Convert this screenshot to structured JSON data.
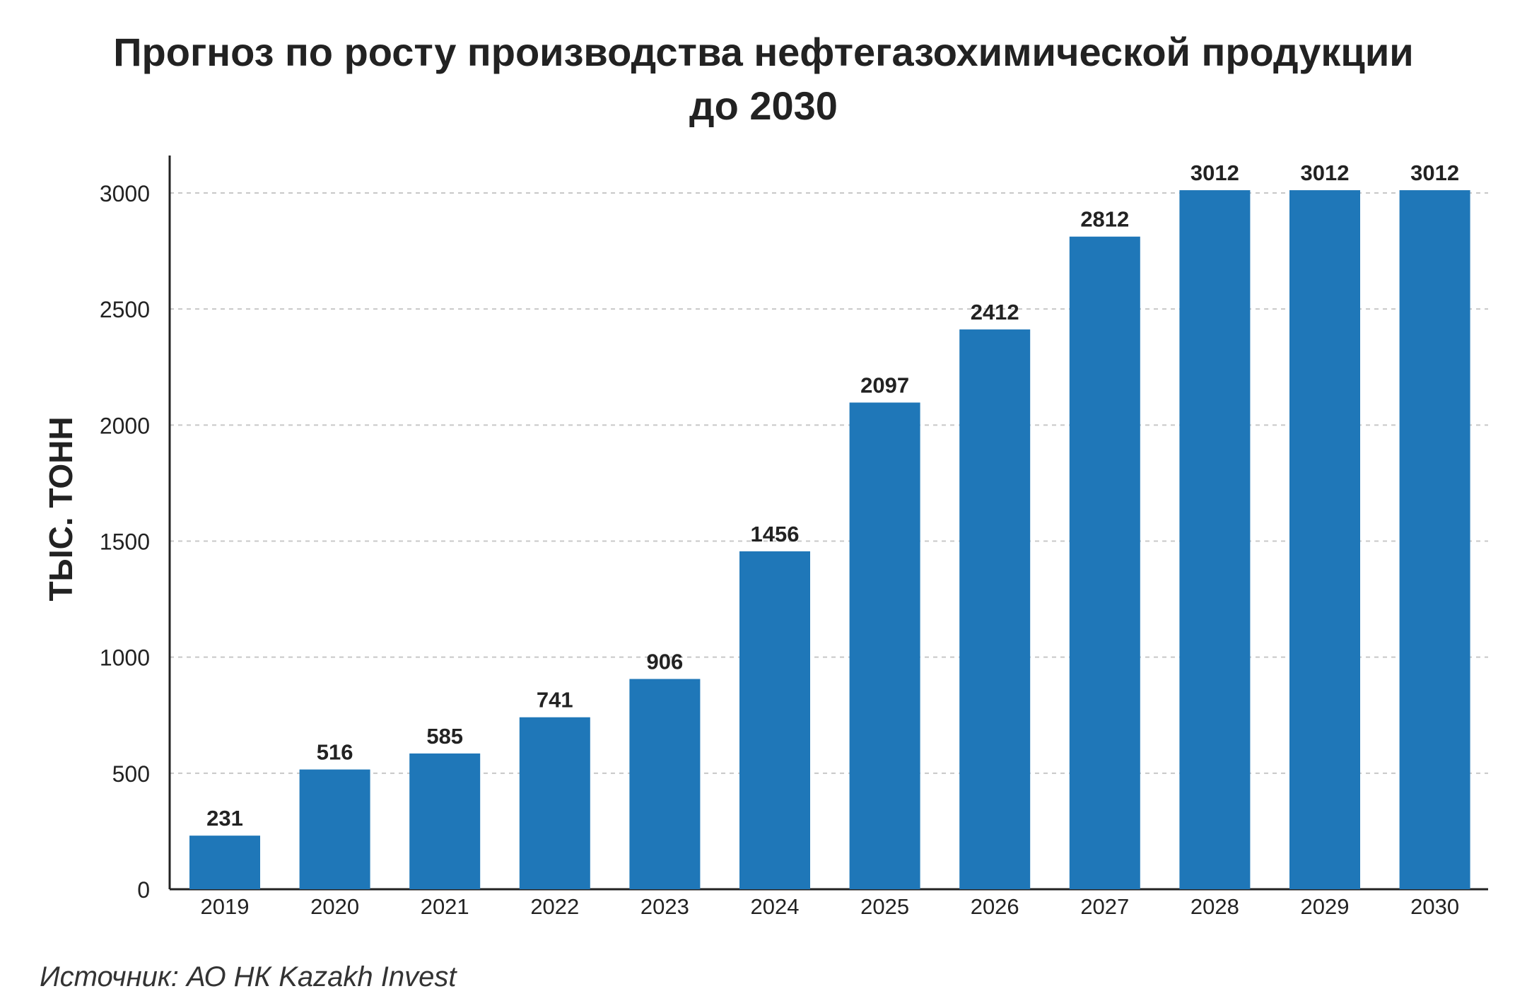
{
  "title_line1": "Прогноз по росту производства нефтегазохимической продукции",
  "title_line2": "до 2030",
  "source": "Источник: АО НК Kazakh Invest",
  "colors": {
    "bar": "#1f77b8",
    "grid": "#c8c8c8",
    "axis": "#222222",
    "text": "#222222"
  },
  "chart_data": {
    "type": "bar",
    "title": "Прогноз по росту производства нефтегазохимической продукции до 2030",
    "xlabel": "",
    "ylabel": "ТЫС. ТОНН",
    "categories": [
      "2019",
      "2020",
      "2021",
      "2022",
      "2023",
      "2024",
      "2025",
      "2026",
      "2027",
      "2028",
      "2029",
      "2030"
    ],
    "values": [
      231,
      516,
      585,
      741,
      906,
      1456,
      2097,
      2412,
      2812,
      3012,
      3012,
      3012
    ],
    "ylim": [
      0,
      3000
    ],
    "yticks": [
      0,
      500,
      1000,
      1500,
      2000,
      2500,
      3000
    ],
    "grid": true,
    "data_labels": true
  }
}
